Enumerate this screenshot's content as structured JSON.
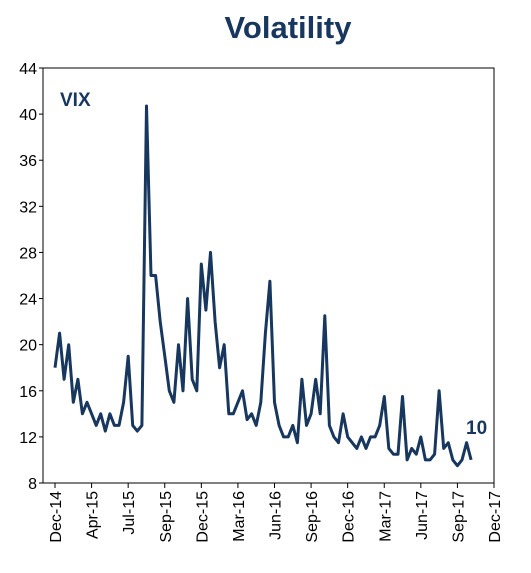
{
  "chart_data": {
    "type": "line",
    "title": "Volatility",
    "annotations": [
      "VIX",
      "10"
    ],
    "color": "#17375e",
    "categories": [
      "Dec-14",
      null,
      null,
      null,
      null,
      null,
      null,
      null,
      "Apr-15",
      null,
      null,
      null,
      null,
      null,
      null,
      null,
      "Jul-15",
      null,
      null,
      null,
      null,
      null,
      null,
      null,
      "Sep-15",
      null,
      null,
      null,
      null,
      null,
      null,
      null,
      "Dec-15",
      null,
      null,
      null,
      null,
      null,
      null,
      null,
      "Mar-16",
      null,
      null,
      null,
      null,
      null,
      null,
      null,
      "Jun-16",
      null,
      null,
      null,
      null,
      null,
      null,
      null,
      "Sep-16",
      null,
      null,
      null,
      null,
      null,
      null,
      null,
      "Dec-16",
      null,
      null,
      null,
      null,
      null,
      null,
      null,
      "Mar-17",
      null,
      null,
      null,
      null,
      null,
      null,
      null,
      "Jun-17",
      null,
      null,
      null,
      null,
      null,
      null,
      null,
      "Sep-17",
      null,
      null,
      null,
      null,
      null,
      null,
      null,
      "Dec-17"
    ],
    "values": [
      18,
      21,
      17,
      20,
      15,
      17,
      14,
      15,
      14,
      13,
      14,
      12.5,
      14,
      13,
      13,
      15,
      19,
      13,
      12.5,
      13,
      40.7,
      26,
      26,
      22,
      19,
      16,
      15,
      20,
      16,
      24,
      17,
      16,
      27,
      23,
      28,
      22,
      18,
      20,
      14,
      14,
      15,
      16,
      13.5,
      14,
      13,
      15,
      21,
      25.5,
      15,
      13,
      12,
      12,
      13,
      11.5,
      17,
      13,
      14,
      17,
      14,
      22.5,
      13,
      12,
      11.5,
      14,
      12,
      11.5,
      11,
      12,
      11,
      12,
      12,
      13,
      15.5,
      11,
      10.5,
      10.5,
      15.5,
      10,
      11,
      10.5,
      12,
      10,
      10,
      10.5,
      16,
      11,
      11.5,
      10,
      9.5,
      10,
      11.5,
      10,
      null,
      null,
      null,
      null,
      null
    ],
    "ylim": [
      8,
      44
    ],
    "yticks": [
      8,
      12,
      16,
      20,
      24,
      28,
      32,
      36,
      40,
      44
    ],
    "grid": false
  }
}
